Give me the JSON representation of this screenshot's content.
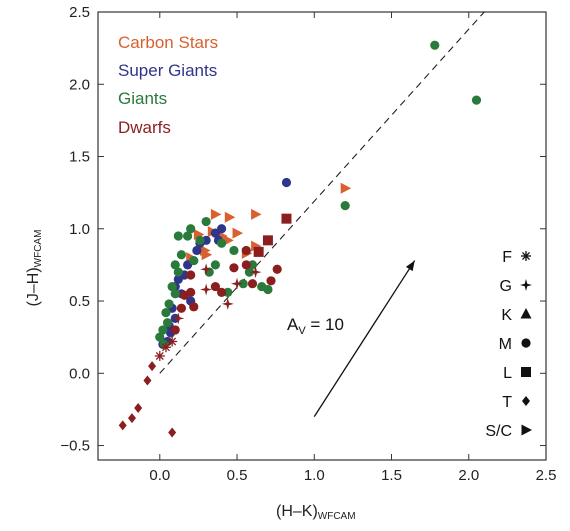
{
  "chart_data": {
    "type": "scatter",
    "xlabel": "(H–K)",
    "xlabel_sub": "WFCAM",
    "ylabel": "(J–H)",
    "ylabel_sub": "WFCAM",
    "xlim": [
      -0.4,
      2.5
    ],
    "ylim": [
      -0.6,
      2.5
    ],
    "xticks": [
      0.0,
      0.5,
      1.0,
      1.5,
      2.0,
      2.5
    ],
    "xtick_labels": [
      "0.0",
      "0.5",
      "1.0",
      "1.5",
      "2.0",
      "2.5"
    ],
    "yticks": [
      -0.5,
      0.0,
      0.5,
      1.0,
      1.5,
      2.0,
      2.5
    ],
    "ytick_labels": [
      "−0.5",
      "0.0",
      "0.5",
      "1.0",
      "1.5",
      "2.0",
      "2.5"
    ],
    "grid": false,
    "legend_position": "top-left",
    "series": [
      {
        "name": "Carbon Stars",
        "color": "#d9612f",
        "marker": "triangle-right",
        "points": [
          [
            1.2,
            1.28
          ],
          [
            0.36,
            1.1
          ],
          [
            0.45,
            1.08
          ],
          [
            0.62,
            1.1
          ],
          [
            0.25,
            0.96
          ],
          [
            0.34,
            0.98
          ],
          [
            0.5,
            0.97
          ],
          [
            0.44,
            0.92
          ],
          [
            0.29,
            0.85
          ],
          [
            0.56,
            0.83
          ],
          [
            0.2,
            0.8
          ],
          [
            0.62,
            0.88
          ],
          [
            0.3,
            0.82
          ],
          [
            0.4,
            0.95
          ]
        ]
      },
      {
        "name": "Super Giants",
        "color": "#2f358a",
        "marker": "circle",
        "points": [
          [
            0.82,
            1.32
          ],
          [
            0.36,
            0.97
          ],
          [
            0.3,
            0.92
          ],
          [
            0.24,
            0.85
          ],
          [
            0.18,
            0.75
          ],
          [
            0.12,
            0.65
          ],
          [
            0.1,
            0.6
          ],
          [
            0.14,
            0.55
          ],
          [
            0.2,
            0.5
          ],
          [
            0.08,
            0.45
          ],
          [
            0.1,
            0.38
          ],
          [
            0.06,
            0.33
          ],
          [
            0.07,
            0.28
          ],
          [
            0.05,
            0.22
          ],
          [
            0.02,
            0.2
          ],
          [
            0.16,
            0.68
          ],
          [
            0.26,
            0.9
          ],
          [
            0.4,
            1.0
          ],
          [
            0.38,
            0.92
          ]
        ]
      },
      {
        "name": "Giants",
        "color": "#2a7a3c",
        "marker": "circle",
        "points": [
          [
            1.78,
            2.27
          ],
          [
            2.05,
            1.89
          ],
          [
            1.2,
            1.16
          ],
          [
            0.3,
            1.05
          ],
          [
            0.2,
            1.0
          ],
          [
            0.18,
            0.95
          ],
          [
            0.26,
            0.92
          ],
          [
            0.14,
            0.82
          ],
          [
            0.1,
            0.75
          ],
          [
            0.12,
            0.7
          ],
          [
            0.08,
            0.6
          ],
          [
            0.1,
            0.55
          ],
          [
            0.06,
            0.48
          ],
          [
            0.04,
            0.42
          ],
          [
            0.05,
            0.35
          ],
          [
            0.02,
            0.3
          ],
          [
            0.0,
            0.25
          ],
          [
            0.03,
            0.2
          ],
          [
            0.48,
            0.85
          ],
          [
            0.6,
            0.75
          ],
          [
            0.54,
            0.62
          ],
          [
            0.7,
            0.58
          ],
          [
            0.66,
            0.6
          ],
          [
            0.58,
            0.7
          ],
          [
            0.44,
            0.56
          ],
          [
            0.36,
            0.75
          ],
          [
            0.22,
            0.78
          ],
          [
            0.12,
            0.95
          ],
          [
            0.4,
            0.9
          ],
          [
            0.32,
            0.7
          ]
        ]
      },
      {
        "name": "Dwarfs",
        "color": "#8b1f1f",
        "marker": "mixed",
        "points": [
          [
            0.82,
            1.07
          ],
          [
            0.48,
            0.73
          ],
          [
            0.56,
            0.75
          ],
          [
            0.64,
            0.84
          ],
          [
            0.7,
            0.92
          ],
          [
            0.56,
            0.85
          ],
          [
            0.62,
            0.7
          ],
          [
            0.76,
            0.72
          ],
          [
            0.72,
            0.64
          ],
          [
            0.5,
            0.62
          ],
          [
            0.6,
            0.62
          ],
          [
            0.4,
            0.56
          ],
          [
            0.3,
            0.58
          ],
          [
            0.2,
            0.56
          ],
          [
            0.36,
            0.6
          ],
          [
            0.44,
            0.48
          ],
          [
            0.22,
            0.46
          ],
          [
            0.16,
            0.54
          ],
          [
            0.3,
            0.72
          ],
          [
            0.2,
            0.68
          ],
          [
            0.14,
            0.45
          ],
          [
            0.12,
            0.38
          ],
          [
            0.1,
            0.3
          ],
          [
            0.08,
            0.22
          ],
          [
            0.04,
            0.18
          ],
          [
            0.0,
            0.12
          ],
          [
            -0.05,
            0.05
          ],
          [
            -0.08,
            -0.05
          ],
          [
            -0.14,
            -0.24
          ],
          [
            -0.24,
            -0.36
          ],
          [
            -0.18,
            -0.31
          ],
          [
            0.08,
            -0.41
          ]
        ]
      }
    ],
    "legend_entries": [
      "Carbon Stars",
      "Super Giants",
      "Giants",
      "Dwarfs"
    ],
    "spectral_key": [
      {
        "label": "F",
        "marker": "asterisk"
      },
      {
        "label": "G",
        "marker": "star"
      },
      {
        "label": "K",
        "marker": "triangle"
      },
      {
        "label": "M",
        "marker": "circle"
      },
      {
        "label": "L",
        "marker": "square"
      },
      {
        "label": "T",
        "marker": "diamond"
      },
      {
        "label": "S/C",
        "marker": "triangle-right"
      }
    ],
    "reference_line": {
      "style": "dashed",
      "from": [
        0.0,
        0.0
      ],
      "to": [
        2.1,
        2.6
      ]
    },
    "reddening_vector": {
      "label": "A",
      "label_sub": "V",
      "label_rest": " = 10",
      "from": [
        1.0,
        -0.3
      ],
      "to": [
        1.65,
        0.78
      ]
    }
  }
}
